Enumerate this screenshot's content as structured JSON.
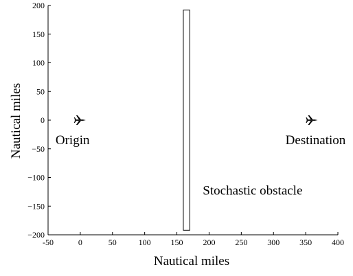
{
  "chart_data": {
    "type": "scatter",
    "title": "",
    "xlabel": "Nautical miles",
    "ylabel": "Nautical miles",
    "xlim": [
      -50,
      400
    ],
    "ylim": [
      -200,
      200
    ],
    "xticks": [
      "-50",
      "0",
      "50",
      "100",
      "150",
      "200",
      "250",
      "300",
      "350",
      "400"
    ],
    "yticks": [
      "200",
      "150",
      "100",
      "50",
      "0",
      "−50",
      "−100",
      "−150",
      "−200"
    ],
    "grid": false,
    "points": [
      {
        "label": "Origin",
        "x": 0,
        "y": 0,
        "icon": "airplane-icon"
      },
      {
        "label": "Destination",
        "x": 360,
        "y": 0,
        "icon": "airplane-icon"
      }
    ],
    "obstacle": {
      "label": "Stochastic obstacle",
      "x": [
        160,
        170
      ],
      "y": [
        -192,
        192
      ]
    },
    "colors": {
      "ink": "#000000",
      "background": "#ffffff"
    }
  }
}
